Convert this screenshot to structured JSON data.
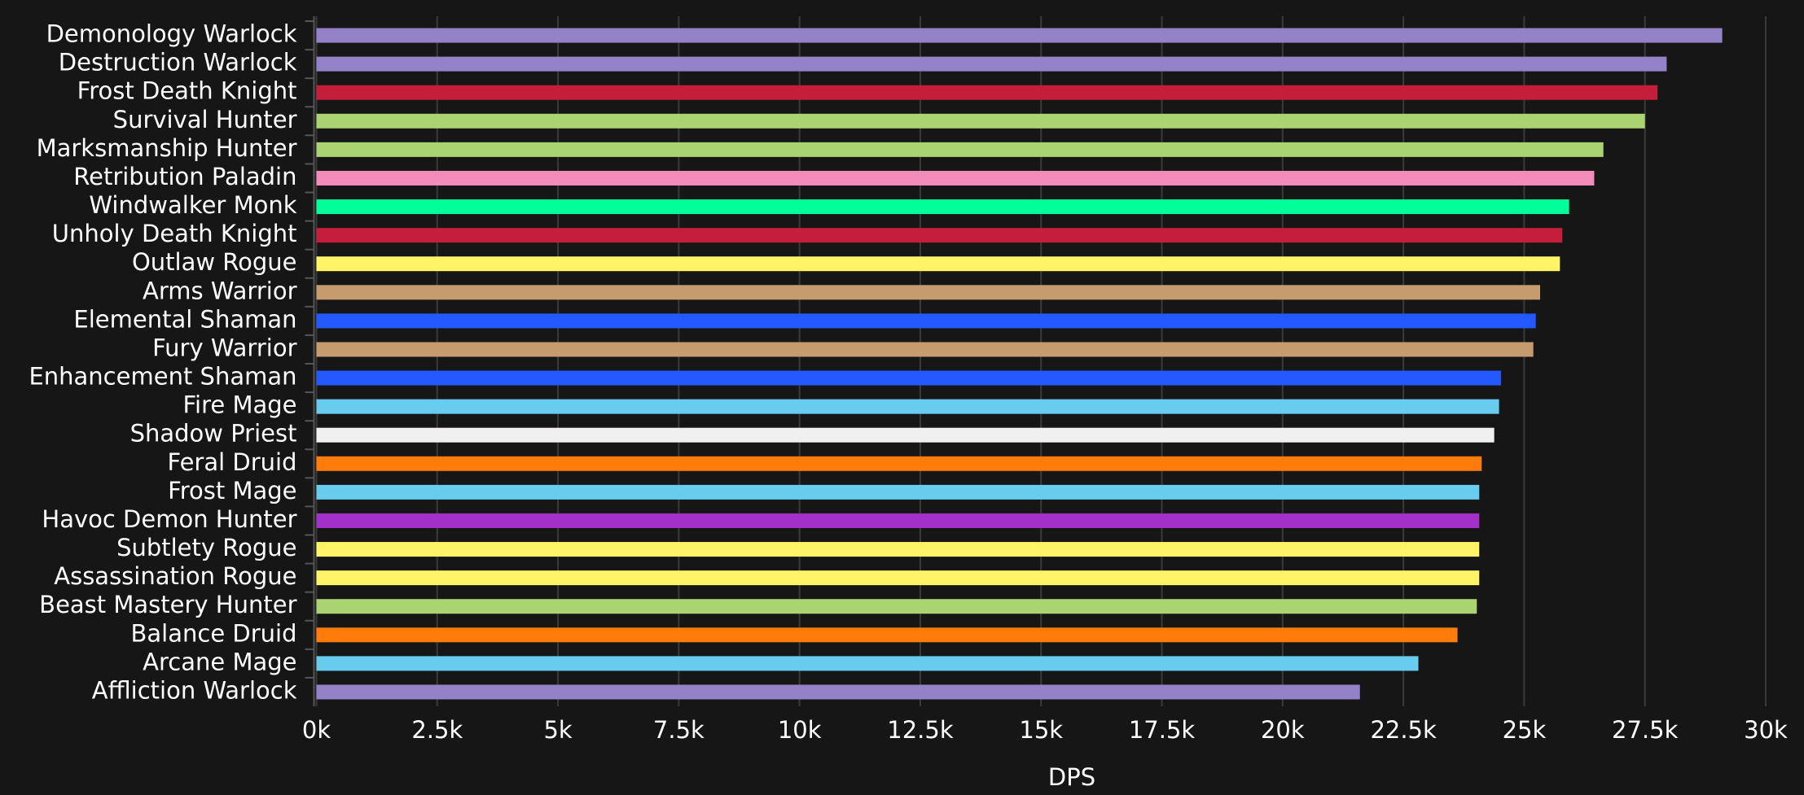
{
  "chart_data": {
    "type": "bar",
    "orientation": "horizontal",
    "x_label": "DPS",
    "categories": [
      "Demonology Warlock",
      "Destruction Warlock",
      "Frost Death Knight",
      "Survival Hunter",
      "Marksmanship Hunter",
      "Retribution Paladin",
      "Windwalker Monk",
      "Unholy Death Knight",
      "Outlaw Rogue",
      "Arms Warrior",
      "Elemental Shaman",
      "Fury Warrior",
      "Enhancement Shaman",
      "Fire Mage",
      "Shadow Priest",
      "Feral Druid",
      "Frost Mage",
      "Havoc Demon Hunter",
      "Subtlety Rogue",
      "Assassination Rogue",
      "Beast Mastery Hunter",
      "Balance Druid",
      "Arcane Mage",
      "Affliction Warlock"
    ],
    "values": [
      29100,
      27950,
      27760,
      27500,
      26640,
      26450,
      25930,
      25790,
      25740,
      25330,
      25240,
      25190,
      24520,
      24480,
      24380,
      24120,
      24070,
      24070,
      24070,
      24070,
      24020,
      23620,
      22810,
      21600
    ],
    "colors": [
      "#9482c9",
      "#9482c9",
      "#c41e3a",
      "#aad372",
      "#aad372",
      "#f48cba",
      "#00ff98",
      "#c41e3a",
      "#fff468",
      "#c69b6d",
      "#2459ff",
      "#c69b6d",
      "#2459ff",
      "#68ccef",
      "#f0f0f0",
      "#ff7c0a",
      "#68ccef",
      "#a330c9",
      "#fff468",
      "#fff468",
      "#aad372",
      "#ff7c0a",
      "#68ccef",
      "#9482c9"
    ],
    "xlim": [
      0,
      30000
    ],
    "xticks": [
      {
        "value": 0,
        "label": "0k"
      },
      {
        "value": 2500,
        "label": "2.5k"
      },
      {
        "value": 5000,
        "label": "5k"
      },
      {
        "value": 7500,
        "label": "7.5k"
      },
      {
        "value": 10000,
        "label": "10k"
      },
      {
        "value": 12500,
        "label": "12.5k"
      },
      {
        "value": 15000,
        "label": "15k"
      },
      {
        "value": 17500,
        "label": "17.5k"
      },
      {
        "value": 20000,
        "label": "20k"
      },
      {
        "value": 22500,
        "label": "22.5k"
      },
      {
        "value": 25000,
        "label": "25k"
      },
      {
        "value": 27500,
        "label": "27.5k"
      },
      {
        "value": 30000,
        "label": "30k"
      }
    ],
    "grid": true
  }
}
